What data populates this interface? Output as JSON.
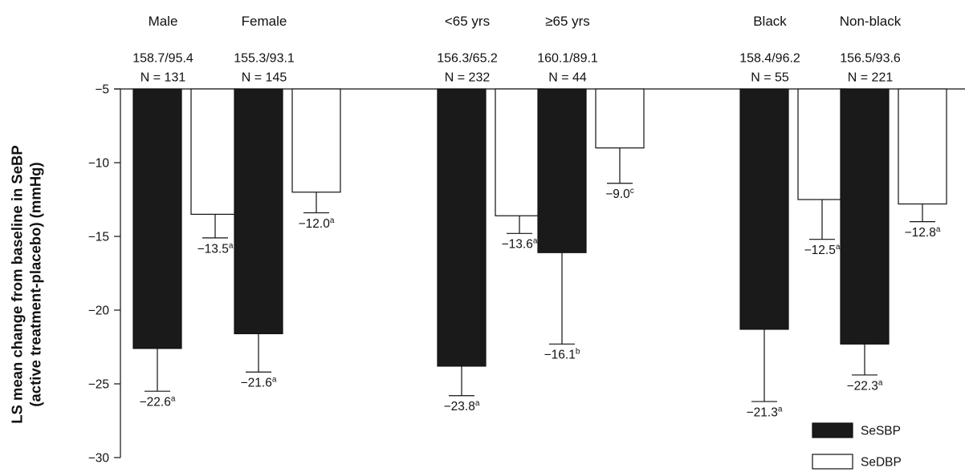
{
  "chart_data": {
    "type": "bar",
    "title": "",
    "ylabel": "LS mean change from baseline in SeBP",
    "ylabel_line2": "(active treatment-placebo) (mmHg)",
    "xlabel": "",
    "ylim": [
      -30,
      -5
    ],
    "yticks": [
      -5,
      -10,
      -15,
      -20,
      -25,
      -30
    ],
    "ytick_labels": [
      "−5",
      "−10",
      "−15",
      "−20",
      "−25",
      "−30"
    ],
    "grid": false,
    "legend_position": "bottom-right",
    "categories": [
      "Male",
      "Female",
      "<65 yrs",
      "≥65 yrs",
      "Black",
      "Non-black"
    ],
    "baseline_bp": [
      "158.7/95.4",
      "155.3/93.1",
      "156.3/65.2",
      "160.1/89.1",
      "158.4/96.2",
      "156.5/93.6"
    ],
    "n_labels": [
      "N = 131",
      "N = 145",
      "N = 232",
      "N = 44",
      "N = 55",
      "N = 221"
    ],
    "series": [
      {
        "name": "SeSBP",
        "color": "#1a1a1a",
        "values": [
          -22.6,
          -21.6,
          -23.8,
          -16.1,
          -21.3,
          -22.3
        ],
        "error_bottom": [
          -25.5,
          -24.2,
          -25.8,
          -22.3,
          -26.2,
          -24.4
        ],
        "labels": [
          "−22.6",
          "−21.6",
          "−23.8",
          "−16.1",
          "−21.3",
          "−22.3"
        ],
        "superscripts": [
          "a",
          "a",
          "a",
          "b",
          "a",
          "a"
        ]
      },
      {
        "name": "SeDBP",
        "color": "#ffffff",
        "values": [
          -13.5,
          -12.0,
          -13.6,
          -9.0,
          -12.5,
          -12.8
        ],
        "error_bottom": [
          -15.1,
          -13.4,
          -14.8,
          -11.4,
          -15.2,
          -14.0
        ],
        "labels": [
          "−13.5",
          "−12.0",
          "−13.6",
          "−9.0",
          "−12.5",
          "−12.8"
        ],
        "superscripts": [
          "a",
          "a",
          "a",
          "c",
          "a",
          "a"
        ]
      }
    ]
  }
}
